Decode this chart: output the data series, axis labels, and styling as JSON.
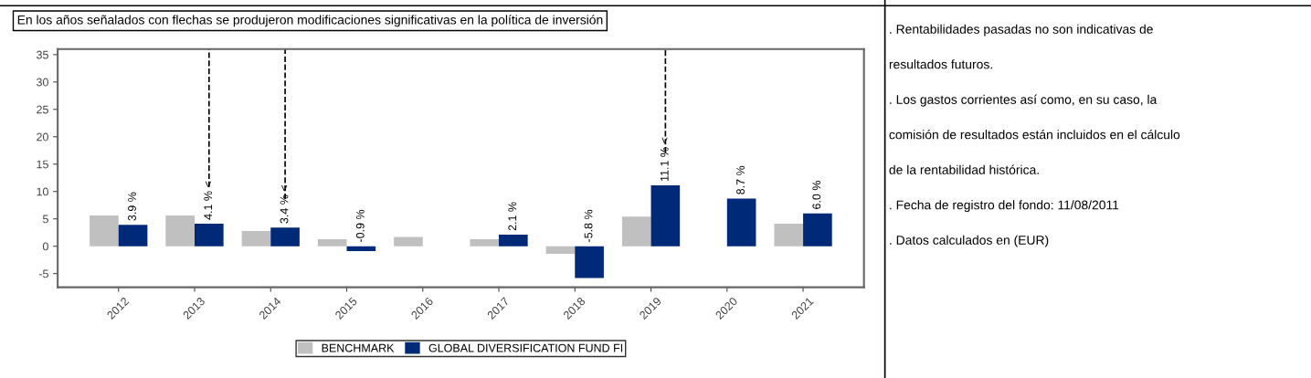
{
  "chart_data": {
    "type": "bar",
    "title": "En los años señalados con flechas se produjeron modificaciones significativas en la política de inversión",
    "categories": [
      "2012",
      "2013",
      "2014",
      "2015",
      "2016",
      "2017",
      "2018",
      "2019",
      "2020",
      "2021"
    ],
    "series": [
      {
        "name": "BENCHMARK",
        "color": "#c0c0c0",
        "values": [
          5.6,
          5.6,
          2.8,
          1.3,
          1.7,
          1.3,
          -1.4,
          5.4,
          null,
          4.1
        ]
      },
      {
        "name": "GLOBAL DIVERSIFICATION FUND FI",
        "color": "#002a78",
        "values": [
          3.9,
          4.1,
          3.4,
          -0.9,
          null,
          2.1,
          -5.8,
          11.1,
          8.7,
          6.0
        ],
        "value_labels": [
          "3.9 %",
          "4.1 % <",
          "3.4 % <",
          "-0.9 %",
          null,
          "2.1 %",
          "-5.8 %",
          "11.1 % <",
          "8.7 %",
          "6.0 %"
        ]
      }
    ],
    "ylim": [
      -7.5,
      36
    ],
    "yticks": [
      -5,
      0,
      5,
      10,
      15,
      20,
      25,
      30,
      35
    ],
    "grid": false,
    "legend": "bottom",
    "ref_lines": [
      {
        "axis": "x",
        "value": "2013",
        "color": "#000000",
        "line_style": "dashed"
      },
      {
        "axis": "x",
        "value": "2014",
        "color": "#000000",
        "line_style": "dashed"
      },
      {
        "axis": "x",
        "value": "2019",
        "color": "#000000",
        "line_style": "dashed"
      }
    ],
    "annotations": [
      ". Rentabilidades pasadas no son indicativas de",
      "resultados futuros.",
      ". Los gastos corrientes así como, en su caso, la",
      "comisión de resultados están incluidos en el cálculo",
      "de la rentabilidad histórica.",
      ". Fecha de registro del fondo: 11/08/2011",
      ". Datos calculados en (EUR)"
    ]
  }
}
